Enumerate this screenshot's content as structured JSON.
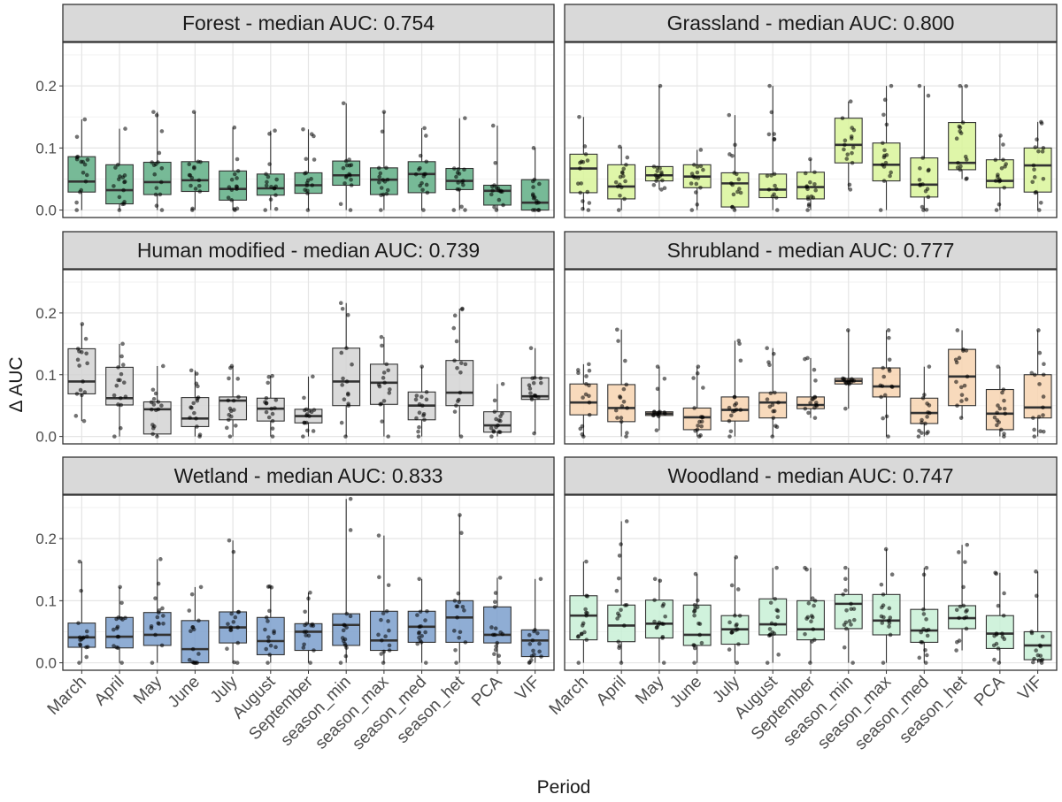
{
  "chart_data": {
    "type": "box",
    "xlabel": "Period",
    "ylabel": "Δ AUC",
    "ylim": [
      -0.012,
      0.27
    ],
    "y_ticks": [
      "0.0",
      "0.1",
      "0.2"
    ],
    "grid": true,
    "categories": [
      "March",
      "April",
      "May",
      "June",
      "July",
      "August",
      "September",
      "season_min",
      "season_max",
      "season_med",
      "season_het",
      "PCA",
      "VIF"
    ],
    "panels": [
      {
        "title": "Forest - median AUC: 0.754",
        "color": "#5fae85",
        "boxes": [
          {
            "q1": 0.029,
            "median": 0.046,
            "q3": 0.086,
            "lo": 0.0,
            "hi": 0.146
          },
          {
            "q1": 0.01,
            "median": 0.032,
            "q3": 0.073,
            "lo": 0.0,
            "hi": 0.131
          },
          {
            "q1": 0.025,
            "median": 0.045,
            "q3": 0.077,
            "lo": 0.0,
            "hi": 0.158
          },
          {
            "q1": 0.03,
            "median": 0.048,
            "q3": 0.078,
            "lo": 0.0,
            "hi": 0.158
          },
          {
            "q1": 0.016,
            "median": 0.034,
            "q3": 0.063,
            "lo": 0.0,
            "hi": 0.133
          },
          {
            "q1": 0.024,
            "median": 0.035,
            "q3": 0.058,
            "lo": 0.0,
            "hi": 0.128
          },
          {
            "q1": 0.027,
            "median": 0.04,
            "q3": 0.06,
            "lo": 0.0,
            "hi": 0.13
          },
          {
            "q1": 0.04,
            "median": 0.056,
            "q3": 0.079,
            "lo": 0.0,
            "hi": 0.172
          },
          {
            "q1": 0.025,
            "median": 0.049,
            "q3": 0.068,
            "lo": 0.0,
            "hi": 0.158
          },
          {
            "q1": 0.028,
            "median": 0.058,
            "q3": 0.078,
            "lo": 0.0,
            "hi": 0.132
          },
          {
            "q1": 0.033,
            "median": 0.047,
            "q3": 0.067,
            "lo": 0.0,
            "hi": 0.148
          },
          {
            "q1": 0.008,
            "median": 0.031,
            "q3": 0.04,
            "lo": 0.0,
            "hi": 0.136
          },
          {
            "q1": 0.0,
            "median": 0.012,
            "q3": 0.049,
            "lo": 0.0,
            "hi": 0.1
          }
        ]
      },
      {
        "title": "Grassland - median AUC: 0.800",
        "color": "#d9f59a",
        "boxes": [
          {
            "q1": 0.028,
            "median": 0.067,
            "q3": 0.09,
            "lo": 0.0,
            "hi": 0.15
          },
          {
            "q1": 0.018,
            "median": 0.038,
            "q3": 0.073,
            "lo": 0.0,
            "hi": 0.102
          },
          {
            "q1": 0.047,
            "median": 0.056,
            "q3": 0.07,
            "lo": 0.033,
            "hi": 0.2
          },
          {
            "q1": 0.036,
            "median": 0.054,
            "q3": 0.073,
            "lo": 0.0,
            "hi": 0.097
          },
          {
            "q1": 0.005,
            "median": 0.043,
            "q3": 0.06,
            "lo": 0.0,
            "hi": 0.153
          },
          {
            "q1": 0.02,
            "median": 0.033,
            "q3": 0.058,
            "lo": 0.0,
            "hi": 0.2
          },
          {
            "q1": 0.018,
            "median": 0.037,
            "q3": 0.061,
            "lo": 0.0,
            "hi": 0.082
          },
          {
            "q1": 0.076,
            "median": 0.105,
            "q3": 0.148,
            "lo": 0.033,
            "hi": 0.175
          },
          {
            "q1": 0.047,
            "median": 0.073,
            "q3": 0.108,
            "lo": 0.0,
            "hi": 0.2
          },
          {
            "q1": 0.021,
            "median": 0.041,
            "q3": 0.084,
            "lo": 0.0,
            "hi": 0.2
          },
          {
            "q1": 0.065,
            "median": 0.076,
            "q3": 0.141,
            "lo": 0.05,
            "hi": 0.2
          },
          {
            "q1": 0.036,
            "median": 0.047,
            "q3": 0.081,
            "lo": 0.0,
            "hi": 0.12
          },
          {
            "q1": 0.029,
            "median": 0.072,
            "q3": 0.1,
            "lo": 0.0,
            "hi": 0.142
          }
        ]
      },
      {
        "title": "Human modified - median AUC: 0.739",
        "color": "#d4d4d4",
        "boxes": [
          {
            "q1": 0.069,
            "median": 0.089,
            "q3": 0.142,
            "lo": 0.025,
            "hi": 0.182
          },
          {
            "q1": 0.051,
            "median": 0.062,
            "q3": 0.112,
            "lo": 0.0,
            "hi": 0.15
          },
          {
            "q1": 0.004,
            "median": 0.044,
            "q3": 0.056,
            "lo": 0.0,
            "hi": 0.114
          },
          {
            "q1": 0.016,
            "median": 0.029,
            "q3": 0.063,
            "lo": 0.0,
            "hi": 0.107
          },
          {
            "q1": 0.027,
            "median": 0.058,
            "q3": 0.064,
            "lo": 0.0,
            "hi": 0.114
          },
          {
            "q1": 0.025,
            "median": 0.045,
            "q3": 0.062,
            "lo": 0.0,
            "hi": 0.098
          },
          {
            "q1": 0.022,
            "median": 0.033,
            "q3": 0.044,
            "lo": 0.0,
            "hi": 0.097
          },
          {
            "q1": 0.05,
            "median": 0.089,
            "q3": 0.143,
            "lo": 0.0,
            "hi": 0.216
          },
          {
            "q1": 0.052,
            "median": 0.087,
            "q3": 0.117,
            "lo": 0.0,
            "hi": 0.161
          },
          {
            "q1": 0.027,
            "median": 0.05,
            "q3": 0.072,
            "lo": 0.0,
            "hi": 0.113
          },
          {
            "q1": 0.05,
            "median": 0.071,
            "q3": 0.123,
            "lo": 0.0,
            "hi": 0.207
          },
          {
            "q1": 0.007,
            "median": 0.018,
            "q3": 0.04,
            "lo": 0.0,
            "hi": 0.085
          },
          {
            "q1": 0.06,
            "median": 0.065,
            "q3": 0.095,
            "lo": 0.005,
            "hi": 0.143
          }
        ]
      },
      {
        "title": "Shrubland - median AUC: 0.777",
        "color": "#f7d4b0",
        "boxes": [
          {
            "q1": 0.035,
            "median": 0.055,
            "q3": 0.085,
            "lo": 0.0,
            "hi": 0.117
          },
          {
            "q1": 0.024,
            "median": 0.046,
            "q3": 0.084,
            "lo": 0.0,
            "hi": 0.173
          },
          {
            "q1": 0.034,
            "median": 0.037,
            "q3": 0.04,
            "lo": 0.01,
            "hi": 0.113
          },
          {
            "q1": 0.011,
            "median": 0.031,
            "q3": 0.046,
            "lo": 0.0,
            "hi": 0.113
          },
          {
            "q1": 0.025,
            "median": 0.043,
            "q3": 0.064,
            "lo": 0.0,
            "hi": 0.155
          },
          {
            "q1": 0.03,
            "median": 0.055,
            "q3": 0.071,
            "lo": 0.0,
            "hi": 0.143
          },
          {
            "q1": 0.045,
            "median": 0.051,
            "q3": 0.064,
            "lo": 0.03,
            "hi": 0.127
          },
          {
            "q1": 0.085,
            "median": 0.09,
            "q3": 0.094,
            "lo": 0.045,
            "hi": 0.172
          },
          {
            "q1": 0.064,
            "median": 0.081,
            "q3": 0.111,
            "lo": 0.0,
            "hi": 0.172
          },
          {
            "q1": 0.021,
            "median": 0.038,
            "q3": 0.062,
            "lo": 0.0,
            "hi": 0.113
          },
          {
            "q1": 0.05,
            "median": 0.097,
            "q3": 0.141,
            "lo": 0.03,
            "hi": 0.172
          },
          {
            "q1": 0.011,
            "median": 0.037,
            "q3": 0.076,
            "lo": 0.0,
            "hi": 0.113
          },
          {
            "q1": 0.03,
            "median": 0.047,
            "q3": 0.1,
            "lo": 0.0,
            "hi": 0.172
          }
        ]
      },
      {
        "title": "Wetland - median AUC: 0.833",
        "color": "#7b9fcc",
        "boxes": [
          {
            "q1": 0.025,
            "median": 0.041,
            "q3": 0.064,
            "lo": 0.0,
            "hi": 0.163
          },
          {
            "q1": 0.024,
            "median": 0.042,
            "q3": 0.073,
            "lo": 0.0,
            "hi": 0.122
          },
          {
            "q1": 0.028,
            "median": 0.045,
            "q3": 0.081,
            "lo": 0.0,
            "hi": 0.167
          },
          {
            "q1": 0.0,
            "median": 0.022,
            "q3": 0.068,
            "lo": 0.0,
            "hi": 0.122
          },
          {
            "q1": 0.032,
            "median": 0.057,
            "q3": 0.082,
            "lo": 0.0,
            "hi": 0.197
          },
          {
            "q1": 0.013,
            "median": 0.035,
            "q3": 0.073,
            "lo": 0.0,
            "hi": 0.123
          },
          {
            "q1": 0.02,
            "median": 0.05,
            "q3": 0.063,
            "lo": 0.0,
            "hi": 0.113
          },
          {
            "q1": 0.028,
            "median": 0.061,
            "q3": 0.079,
            "lo": 0.0,
            "hi": 0.264
          },
          {
            "q1": 0.02,
            "median": 0.036,
            "q3": 0.083,
            "lo": 0.0,
            "hi": 0.205
          },
          {
            "q1": 0.033,
            "median": 0.058,
            "q3": 0.083,
            "lo": 0.0,
            "hi": 0.135
          },
          {
            "q1": 0.033,
            "median": 0.073,
            "q3": 0.1,
            "lo": 0.0,
            "hi": 0.238
          },
          {
            "q1": 0.032,
            "median": 0.045,
            "q3": 0.09,
            "lo": 0.0,
            "hi": 0.137
          },
          {
            "q1": 0.01,
            "median": 0.036,
            "q3": 0.053,
            "lo": 0.0,
            "hi": 0.135
          }
        ]
      },
      {
        "title": "Woodland - median AUC: 0.747",
        "color": "#c8f0d6",
        "boxes": [
          {
            "q1": 0.037,
            "median": 0.076,
            "q3": 0.108,
            "lo": 0.0,
            "hi": 0.163
          },
          {
            "q1": 0.034,
            "median": 0.06,
            "q3": 0.093,
            "lo": 0.0,
            "hi": 0.228
          },
          {
            "q1": 0.04,
            "median": 0.063,
            "q3": 0.101,
            "lo": 0.0,
            "hi": 0.135
          },
          {
            "q1": 0.028,
            "median": 0.045,
            "q3": 0.093,
            "lo": 0.0,
            "hi": 0.143
          },
          {
            "q1": 0.03,
            "median": 0.054,
            "q3": 0.076,
            "lo": 0.0,
            "hi": 0.17
          },
          {
            "q1": 0.045,
            "median": 0.062,
            "q3": 0.103,
            "lo": 0.0,
            "hi": 0.153
          },
          {
            "q1": 0.037,
            "median": 0.054,
            "q3": 0.1,
            "lo": 0.0,
            "hi": 0.153
          },
          {
            "q1": 0.055,
            "median": 0.095,
            "q3": 0.11,
            "lo": 0.0,
            "hi": 0.153
          },
          {
            "q1": 0.045,
            "median": 0.068,
            "q3": 0.11,
            "lo": 0.0,
            "hi": 0.183
          },
          {
            "q1": 0.033,
            "median": 0.052,
            "q3": 0.086,
            "lo": 0.0,
            "hi": 0.153
          },
          {
            "q1": 0.055,
            "median": 0.072,
            "q3": 0.092,
            "lo": 0.02,
            "hi": 0.19
          },
          {
            "q1": 0.023,
            "median": 0.047,
            "q3": 0.076,
            "lo": 0.0,
            "hi": 0.145
          },
          {
            "q1": 0.005,
            "median": 0.028,
            "q3": 0.05,
            "lo": 0.0,
            "hi": 0.147
          }
        ]
      }
    ]
  }
}
